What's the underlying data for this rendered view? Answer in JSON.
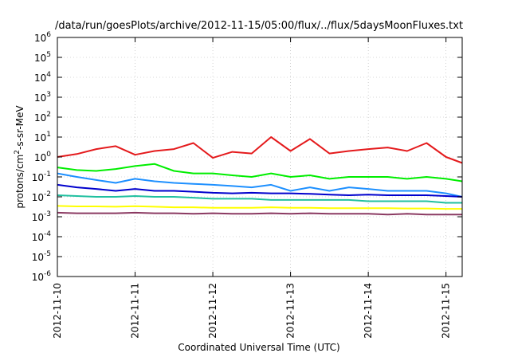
{
  "chart_data": {
    "type": "line",
    "title": "/data/run/goesPlots/archive/2012-11-15/05:00/flux/../flux/5daysMoonFluxes.txt",
    "xlabel": "Coordinated Universal Time (UTC)",
    "ylabel": {
      "prefix": "protons/cm",
      "sup": "2",
      "suffix": "-s-sr-MeV"
    },
    "xlim": [
      "2012-11-10",
      "2012-11-15 05:00"
    ],
    "ylim": [
      1e-06,
      1000000.0
    ],
    "yscale": "log",
    "grid": true,
    "x_ticks": [
      "2012-11-10",
      "2012-11-11",
      "2012-11-12",
      "2012-11-13",
      "2012-11-14",
      "2012-11-15"
    ],
    "y_ticks": [
      {
        "base": "10",
        "exp": "-6",
        "value": 1e-06
      },
      {
        "base": "10",
        "exp": "-5",
        "value": 1e-05
      },
      {
        "base": "10",
        "exp": "-4",
        "value": 0.0001
      },
      {
        "base": "10",
        "exp": "-3",
        "value": 0.001
      },
      {
        "base": "10",
        "exp": "-2",
        "value": 0.01
      },
      {
        "base": "10",
        "exp": "-1",
        "value": 0.1
      },
      {
        "base": "10",
        "exp": "0",
        "value": 1
      },
      {
        "base": "10",
        "exp": "1",
        "value": 10
      },
      {
        "base": "10",
        "exp": "2",
        "value": 100
      },
      {
        "base": "10",
        "exp": "3",
        "value": 1000
      },
      {
        "base": "10",
        "exp": "4",
        "value": 10000
      },
      {
        "base": "10",
        "exp": "5",
        "value": 100000
      },
      {
        "base": "10",
        "exp": "6",
        "value": 1000000
      }
    ],
    "x": [
      "2012-11-10 00:00",
      "2012-11-10 06:00",
      "2012-11-10 12:00",
      "2012-11-10 18:00",
      "2012-11-11 00:00",
      "2012-11-11 06:00",
      "2012-11-11 12:00",
      "2012-11-11 18:00",
      "2012-11-12 00:00",
      "2012-11-12 06:00",
      "2012-11-12 12:00",
      "2012-11-12 18:00",
      "2012-11-13 00:00",
      "2012-11-13 06:00",
      "2012-11-13 12:00",
      "2012-11-13 18:00",
      "2012-11-14 00:00",
      "2012-11-14 06:00",
      "2012-11-14 12:00",
      "2012-11-14 18:00",
      "2012-11-15 00:00",
      "2012-11-15 05:00"
    ],
    "series": [
      {
        "color": "#e41a1c",
        "values": [
          1.0,
          1.4,
          2.5,
          3.5,
          1.3,
          2.0,
          2.5,
          5.0,
          0.9,
          1.8,
          1.5,
          10.0,
          2.0,
          8.0,
          1.5,
          2.0,
          2.5,
          3.0,
          2.0,
          5.0,
          1.0,
          0.5
        ]
      },
      {
        "color": "#00ee00",
        "values": [
          0.3,
          0.22,
          0.2,
          0.25,
          0.35,
          0.45,
          0.2,
          0.15,
          0.15,
          0.12,
          0.1,
          0.15,
          0.1,
          0.12,
          0.08,
          0.1,
          0.1,
          0.1,
          0.08,
          0.1,
          0.08,
          0.06
        ]
      },
      {
        "color": "#1e90ff",
        "values": [
          0.15,
          0.1,
          0.07,
          0.05,
          0.08,
          0.06,
          0.05,
          0.045,
          0.04,
          0.035,
          0.03,
          0.04,
          0.02,
          0.03,
          0.02,
          0.03,
          0.025,
          0.02,
          0.02,
          0.02,
          0.015,
          0.01
        ]
      },
      {
        "color": "#0000cd",
        "values": [
          0.04,
          0.03,
          0.025,
          0.02,
          0.025,
          0.02,
          0.02,
          0.018,
          0.016,
          0.015,
          0.016,
          0.015,
          0.015,
          0.014,
          0.013,
          0.012,
          0.013,
          0.012,
          0.012,
          0.012,
          0.011,
          0.01
        ]
      },
      {
        "color": "#20c0a0",
        "values": [
          0.012,
          0.011,
          0.01,
          0.01,
          0.011,
          0.01,
          0.01,
          0.009,
          0.008,
          0.008,
          0.008,
          0.007,
          0.007,
          0.007,
          0.007,
          0.007,
          0.006,
          0.006,
          0.006,
          0.006,
          0.005,
          0.005
        ]
      },
      {
        "color": "#ffff00",
        "values": [
          0.0035,
          0.0033,
          0.0033,
          0.0032,
          0.0034,
          0.0032,
          0.003,
          0.003,
          0.0028,
          0.0028,
          0.0028,
          0.003,
          0.0028,
          0.0028,
          0.0027,
          0.0027,
          0.0027,
          0.0027,
          0.0026,
          0.0026,
          0.0025,
          0.0025
        ]
      },
      {
        "color": "#8b3a62",
        "values": [
          0.0016,
          0.0015,
          0.0015,
          0.0015,
          0.0016,
          0.0015,
          0.0015,
          0.0014,
          0.0015,
          0.0014,
          0.0014,
          0.0015,
          0.0014,
          0.0015,
          0.0014,
          0.0014,
          0.0014,
          0.0013,
          0.0014,
          0.0013,
          0.0013,
          0.0013
        ]
      }
    ]
  }
}
